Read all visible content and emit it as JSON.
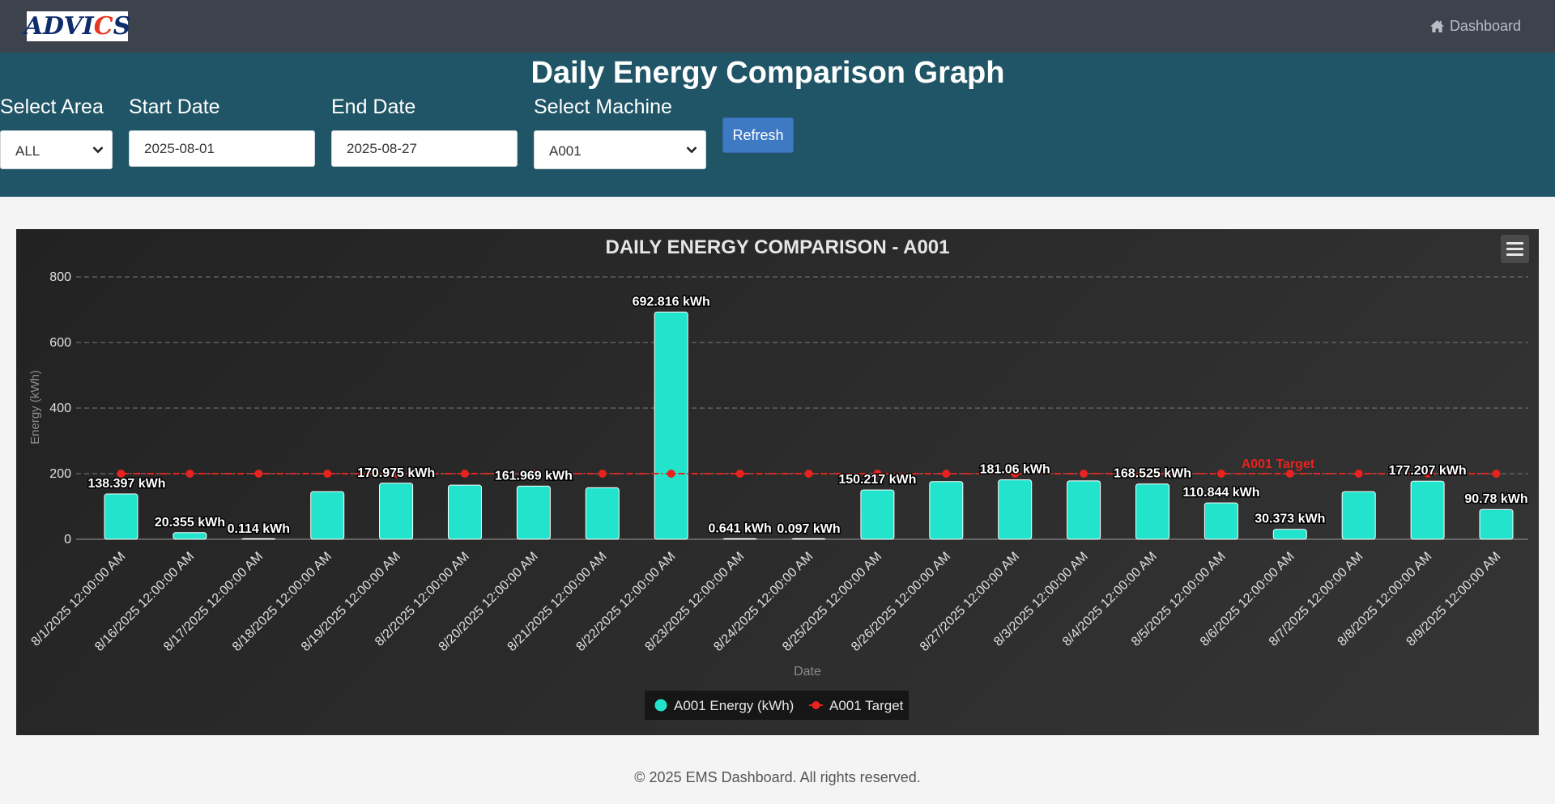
{
  "navbar": {
    "logo_text": "ADVICS",
    "dashboard_label": "Dashboard"
  },
  "filters": {
    "title": "Daily Energy Comparison Graph",
    "area_label": "Select Area",
    "area_value": "ALL",
    "start_label": "Start Date",
    "start_value": "2025-08-01",
    "end_label": "End Date",
    "end_value": "2025-08-27",
    "machine_label": "Select Machine",
    "machine_value": "A001",
    "refresh_label": "Refresh"
  },
  "chart_data": {
    "type": "bar",
    "title": "DAILY ENERGY COMPARISON - A001",
    "xlabel": "Date",
    "ylabel": "Energy (kWh)",
    "ylim": [
      0,
      800
    ],
    "yticks": [
      0,
      200,
      400,
      600,
      800
    ],
    "grid": true,
    "legend_position": "bottom",
    "categories": [
      "8/1/2025 12:00:00 AM",
      "8/16/2025 12:00:00 AM",
      "8/17/2025 12:00:00 AM",
      "8/18/2025 12:00:00 AM",
      "8/19/2025 12:00:00 AM",
      "8/2/2025 12:00:00 AM",
      "8/20/2025 12:00:00 AM",
      "8/21/2025 12:00:00 AM",
      "8/22/2025 12:00:00 AM",
      "8/23/2025 12:00:00 AM",
      "8/24/2025 12:00:00 AM",
      "8/25/2025 12:00:00 AM",
      "8/26/2025 12:00:00 AM",
      "8/27/2025 12:00:00 AM",
      "8/3/2025 12:00:00 AM",
      "8/4/2025 12:00:00 AM",
      "8/5/2025 12:00:00 AM",
      "8/6/2025 12:00:00 AM",
      "8/7/2025 12:00:00 AM",
      "8/8/2025 12:00:00 AM",
      "8/9/2025 12:00:00 AM"
    ],
    "series": [
      {
        "name": "A001 Energy (kWh)",
        "type": "bar",
        "color": "#22e3cb",
        "values": [
          138.397,
          20.355,
          0.114,
          145,
          170.975,
          165,
          161.969,
          157,
          692.816,
          0.641,
          0.097,
          150.217,
          176,
          181.06,
          178,
          168.525,
          110.844,
          30.373,
          145,
          177.207,
          90.78
        ],
        "labels": [
          "138.397 kWh",
          "20.355 kWh",
          "0.114 kWh",
          "",
          "170.975 kWh",
          "",
          "161.969 kWh",
          "",
          "692.816 kWh",
          "0.641 kWh",
          "0.097 kWh",
          "150.217 kWh",
          "",
          "181.06 kWh",
          "",
          "168.525 kWh",
          "110.844 kWh",
          "30.373 kWh",
          "",
          "177.207 kWh",
          "90.78 kWh"
        ]
      },
      {
        "name": "A001 Target",
        "type": "line",
        "color": "#e8221f",
        "values": [
          200,
          200,
          200,
          200,
          200,
          200,
          200,
          200,
          200,
          200,
          200,
          200,
          200,
          200,
          200,
          200,
          200,
          200,
          200,
          200,
          200
        ],
        "annotation": "A001 Target"
      }
    ]
  },
  "footer": {
    "text": "© 2025 EMS Dashboard. All rights reserved."
  }
}
